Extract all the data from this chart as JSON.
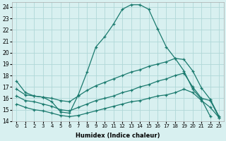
{
  "xlabel": "Humidex (Indice chaleur)",
  "bg_color": "#d8f0f0",
  "grid_color": "#b0d8d8",
  "line_color": "#1a7a6e",
  "xlim": [
    -0.5,
    23.5
  ],
  "ylim": [
    14,
    24.4
  ],
  "xticks": [
    0,
    1,
    2,
    3,
    4,
    5,
    6,
    7,
    8,
    9,
    10,
    11,
    12,
    13,
    14,
    15,
    16,
    17,
    18,
    19,
    20,
    21,
    22,
    23
  ],
  "yticks": [
    14,
    15,
    16,
    17,
    18,
    19,
    20,
    21,
    22,
    23,
    24
  ],
  "series": [
    {
      "x": [
        0,
        1,
        2,
        3,
        4,
        5,
        6,
        7,
        8,
        9,
        10,
        11,
        12,
        13,
        14,
        15,
        16,
        17,
        18,
        19,
        20,
        21,
        22
      ],
      "y": [
        17.5,
        16.5,
        16.2,
        16.1,
        15.7,
        14.8,
        14.7,
        16.3,
        18.3,
        20.5,
        21.4,
        22.5,
        23.8,
        24.2,
        24.2,
        23.8,
        22.1,
        20.5,
        19.5,
        18.4,
        16.8,
        15.9,
        14.4
      ]
    },
    {
      "x": [
        0,
        1,
        2,
        3,
        4,
        5,
        6,
        7,
        8,
        9,
        10,
        11,
        12,
        13,
        14,
        15,
        16,
        17,
        18,
        19,
        20,
        21,
        22,
        23
      ],
      "y": [
        16.8,
        16.3,
        16.2,
        16.1,
        16.0,
        15.8,
        15.7,
        16.2,
        16.7,
        17.1,
        17.4,
        17.7,
        18.0,
        18.3,
        18.5,
        18.8,
        19.0,
        19.2,
        19.5,
        19.4,
        18.4,
        16.9,
        15.9,
        14.4
      ]
    },
    {
      "x": [
        0,
        1,
        2,
        3,
        4,
        5,
        6,
        7,
        8,
        9,
        10,
        11,
        12,
        13,
        14,
        15,
        16,
        17,
        18,
        19,
        20,
        21,
        22,
        23
      ],
      "y": [
        16.2,
        15.8,
        15.7,
        15.5,
        15.3,
        15.0,
        14.9,
        15.2,
        15.5,
        15.8,
        16.0,
        16.2,
        16.5,
        16.7,
        17.0,
        17.2,
        17.5,
        17.7,
        18.0,
        18.2,
        17.0,
        16.0,
        15.8,
        14.3
      ]
    },
    {
      "x": [
        0,
        1,
        2,
        3,
        4,
        5,
        6,
        7,
        8,
        9,
        10,
        11,
        12,
        13,
        14,
        15,
        16,
        17,
        18,
        19,
        20,
        21,
        22,
        23
      ],
      "y": [
        15.5,
        15.2,
        15.0,
        14.9,
        14.7,
        14.5,
        14.4,
        14.5,
        14.7,
        14.9,
        15.1,
        15.3,
        15.5,
        15.7,
        15.8,
        16.0,
        16.2,
        16.3,
        16.5,
        16.8,
        16.5,
        15.8,
        15.2,
        14.3
      ]
    }
  ]
}
